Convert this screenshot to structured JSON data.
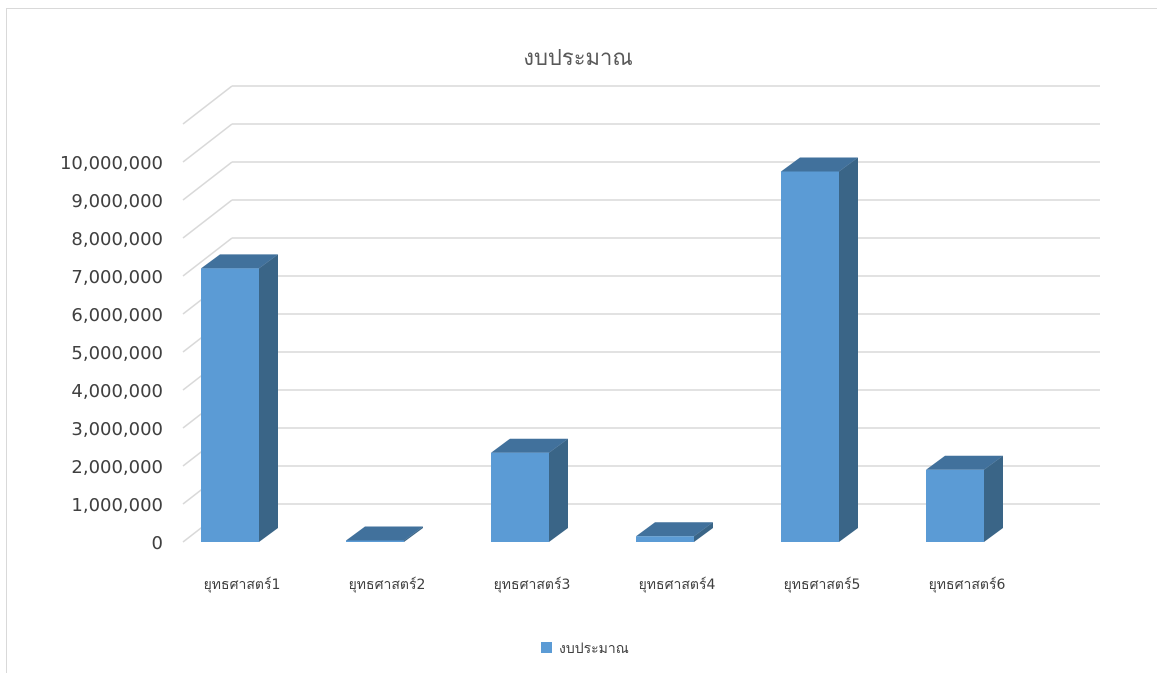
{
  "chart_data": {
    "type": "bar",
    "title": "งบประมาณ",
    "categories": [
      "ยุทธศาสตร์1",
      "ยุทธศาสตร์2",
      "ยุทธศาสตร์3",
      "ยุทธศาสตร์4",
      "ยุทธศาสตร์5",
      "ยุทธศาสตร์6"
    ],
    "series": [
      {
        "name": "งบประมาณ",
        "values": [
          7200000,
          40000,
          2350000,
          150000,
          9750000,
          1900000
        ]
      }
    ],
    "y_ticks": [
      "0",
      "1,000,000",
      "2,000,000",
      "3,000,000",
      "4,000,000",
      "5,000,000",
      "6,000,000",
      "7,000,000",
      "8,000,000",
      "9,000,000",
      "10,000,000"
    ],
    "ylim": [
      0,
      10000000
    ],
    "gridlines": true,
    "legend_position": "bottom",
    "three_d": true,
    "colors": {
      "bar_front": "#5b9bd5",
      "bar_side": "#3a6587",
      "bar_top": "#41719c",
      "grid": "#d9d9d9",
      "text": "#404040",
      "title": "#595959"
    }
  }
}
